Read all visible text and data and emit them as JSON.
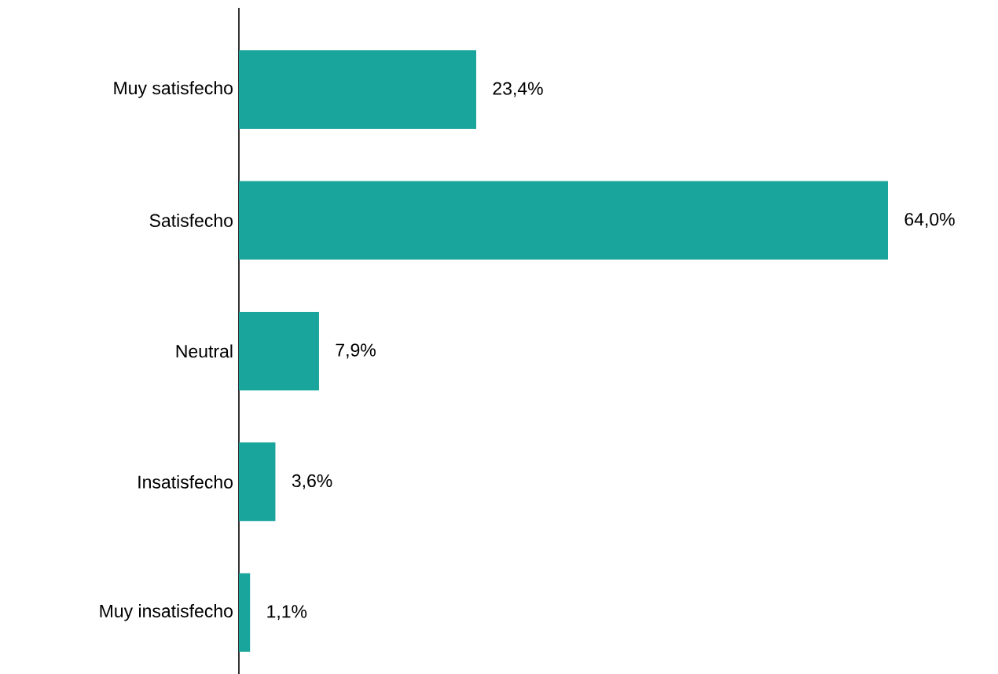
{
  "chart_data": {
    "type": "bar",
    "orientation": "horizontal",
    "categories": [
      "Muy satisfecho",
      "Satisfecho",
      "Neutral",
      "Insatisfecho",
      "Muy insatisfecho"
    ],
    "values": [
      23.4,
      64.0,
      7.9,
      3.6,
      1.1
    ],
    "value_labels": [
      "23,4%",
      "64,0%",
      "7,9%",
      "3,6%",
      "1,1%"
    ],
    "color": "#1aa59c"
  }
}
